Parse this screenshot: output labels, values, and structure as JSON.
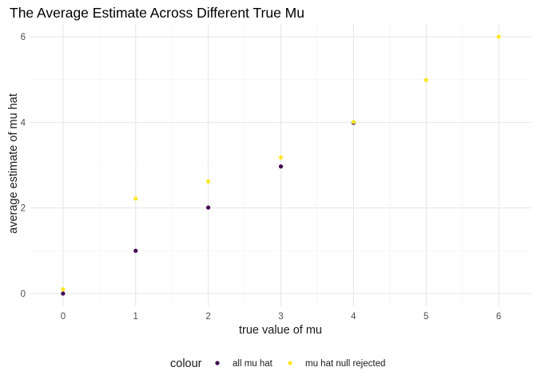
{
  "chart_data": {
    "type": "scatter",
    "title": "The Average Estimate Across Different True Mu",
    "xlabel": "true value of mu",
    "ylabel": "average estimate of mu hat",
    "xlim": [
      -0.45,
      6.45
    ],
    "ylim": [
      -0.3,
      6.3
    ],
    "x_ticks": [
      0,
      1,
      2,
      3,
      4,
      5,
      6
    ],
    "y_ticks": [
      0,
      2,
      4,
      6
    ],
    "grid": true,
    "legend": {
      "title": "colour",
      "position": "bottom"
    },
    "series": [
      {
        "name": "all mu hat",
        "color": "#440154",
        "x": [
          0,
          1,
          2,
          3,
          4
        ],
        "y": [
          0.0,
          1.0,
          2.01,
          2.97,
          3.99
        ]
      },
      {
        "name": "mu hat null rejected",
        "color": "#FDE725",
        "x": [
          0,
          1,
          2,
          3,
          4,
          5,
          6
        ],
        "y": [
          0.1,
          2.22,
          2.62,
          3.18,
          4.01,
          4.99,
          6.0
        ]
      }
    ]
  }
}
